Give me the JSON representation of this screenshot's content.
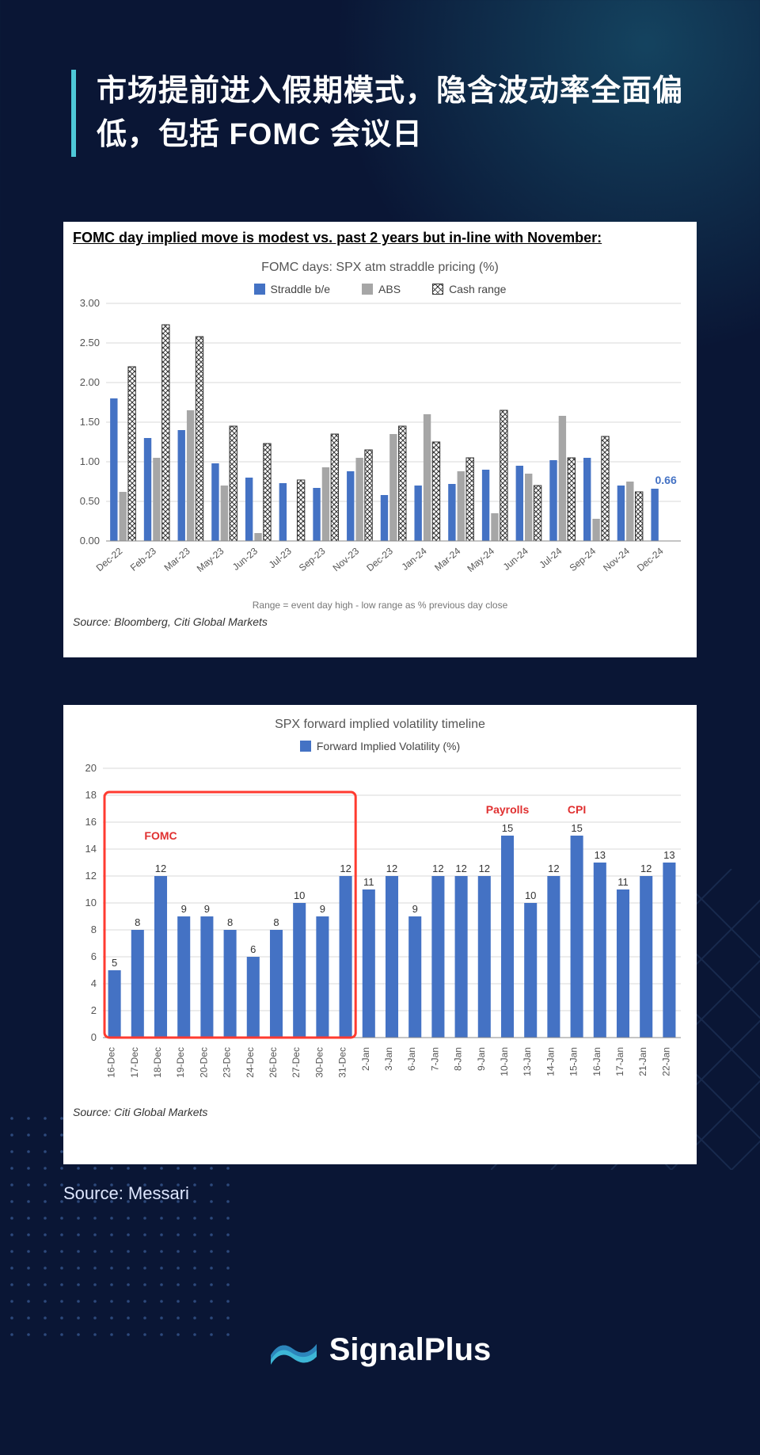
{
  "heading": "市场提前进入假期模式，隐含波动率全面偏低，包括 FOMC 会议日",
  "outer_source": "Source: Messari",
  "logo_text": "SignalPlus",
  "accent_color": "#4ec8d8",
  "chart1": {
    "type": "bar",
    "title_underline": "FOMC day implied move is modest vs. past 2 years but in-line with November:",
    "subtitle": "FOMC days: SPX atm straddle pricing (%)",
    "legend": [
      "Straddle b/e",
      "ABS",
      "Cash range"
    ],
    "footnote": "Range = event day high - low range as % previous day close",
    "source": "Source: Bloomberg, Citi Global Markets",
    "categories": [
      "Dec-22",
      "Feb-23",
      "Mar-23",
      "May-23",
      "Jun-23",
      "Jul-23",
      "Sep-23",
      "Nov-23",
      "Dec-23",
      "Jan-24",
      "Mar-24",
      "May-24",
      "Jun-24",
      "Jul-24",
      "Sep-24",
      "Nov-24",
      "Dec-24"
    ],
    "straddle": [
      1.8,
      1.3,
      1.4,
      0.98,
      0.8,
      0.73,
      0.67,
      0.88,
      0.58,
      0.7,
      0.72,
      0.9,
      0.95,
      1.02,
      1.05,
      0.7,
      0.66
    ],
    "abs": [
      0.62,
      1.05,
      1.65,
      0.7,
      0.1,
      0.0,
      0.93,
      1.05,
      1.35,
      1.6,
      0.88,
      0.35,
      0.85,
      1.58,
      0.28,
      0.75,
      null
    ],
    "cash": [
      2.2,
      2.73,
      2.58,
      1.45,
      1.23,
      0.77,
      1.35,
      1.15,
      1.45,
      1.25,
      1.05,
      1.65,
      0.7,
      1.05,
      1.32,
      0.62,
      null
    ],
    "ylim": [
      0,
      3.0
    ],
    "ytick_step": 0.5,
    "colors": {
      "straddle": "#4472c4",
      "abs": "#a6a6a6",
      "cash_fill": "#ffffff",
      "cash_stroke": "#333333"
    },
    "highlight_label": "0.66",
    "grid_color": "#d9d9d9",
    "background": "#ffffff"
  },
  "chart2": {
    "type": "bar",
    "subtitle": "SPX forward implied volatility timeline",
    "legend": [
      "Forward Implied Volatility (%)"
    ],
    "source": "Source: Citi Global Markets",
    "categories": [
      "16-Dec",
      "17-Dec",
      "18-Dec",
      "19-Dec",
      "20-Dec",
      "23-Dec",
      "24-Dec",
      "26-Dec",
      "27-Dec",
      "30-Dec",
      "31-Dec",
      "2-Jan",
      "3-Jan",
      "6-Jan",
      "7-Jan",
      "8-Jan",
      "9-Jan",
      "10-Jan",
      "13-Jan",
      "14-Jan",
      "15-Jan",
      "16-Jan",
      "17-Jan",
      "21-Jan",
      "22-Jan"
    ],
    "values": [
      5,
      8,
      12,
      9,
      9,
      8,
      6,
      8,
      10,
      9,
      12,
      11,
      12,
      9,
      12,
      12,
      12,
      15,
      10,
      12,
      15,
      13,
      11,
      12,
      13
    ],
    "ylim": [
      0,
      20
    ],
    "ytick_step": 2,
    "bar_color": "#4472c4",
    "grid_color": "#d9d9d9",
    "background": "#ffffff",
    "annotations": [
      {
        "text": "FOMC",
        "x_index": 2,
        "dy": -46,
        "box": false
      },
      {
        "text": "Payrolls",
        "x_index": 17,
        "dy": -28,
        "box": false
      },
      {
        "text": "CPI",
        "x_index": 20,
        "dy": -28,
        "box": false
      }
    ],
    "highlight_box": {
      "start_index": 0,
      "end_index": 10,
      "color": "#ff3b30"
    }
  }
}
